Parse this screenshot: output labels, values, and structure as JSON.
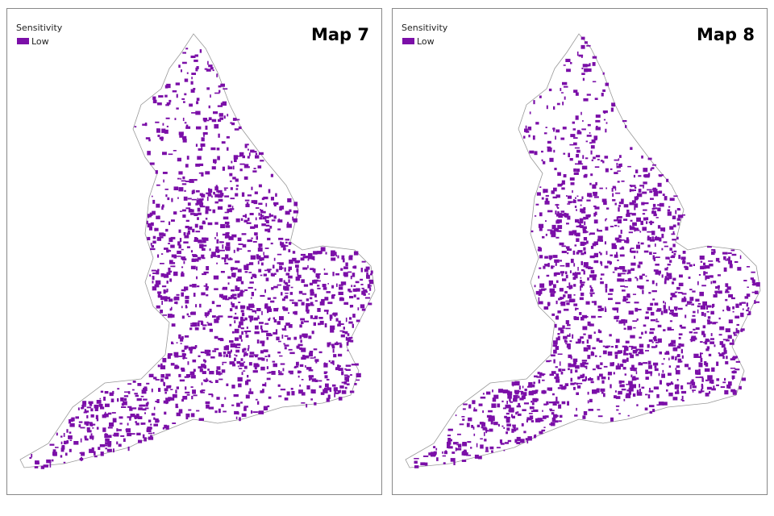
{
  "maps": [
    {
      "title": "Map 7",
      "legend": {
        "title": "Sensitivity",
        "items": [
          {
            "label": "Low",
            "color": "#7b0fa8"
          }
        ]
      }
    },
    {
      "title": "Map 8",
      "legend": {
        "title": "Sensitivity",
        "items": [
          {
            "label": "Low",
            "color": "#7b0fa8"
          }
        ]
      }
    }
  ]
}
